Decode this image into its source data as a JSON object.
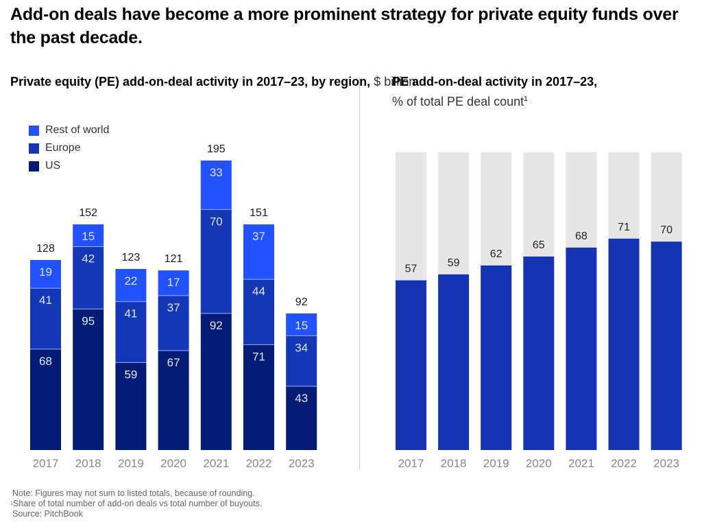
{
  "title": "Add-on deals have become a more prominent strategy for private equity funds over the past decade.",
  "colors": {
    "rest_of_world": "#2251ff",
    "europe": "#1437b8",
    "us": "#051c76",
    "share": "#1534b4",
    "share_bg": "#e6e6e6"
  },
  "chart_data": [
    {
      "type": "bar",
      "stacked": true,
      "title_bold": "Private equity (PE) add-on-deal activity in 2017–23, by region,",
      "title_light": "$ billion",
      "xlabel": "",
      "ylabel": "$ billion",
      "categories": [
        "2017",
        "2018",
        "2019",
        "2020",
        "2021",
        "2022",
        "2023"
      ],
      "series": [
        {
          "name": "US",
          "color_key": "us",
          "values": [
            68,
            95,
            59,
            67,
            92,
            71,
            43
          ]
        },
        {
          "name": "Europe",
          "color_key": "europe",
          "values": [
            41,
            42,
            41,
            37,
            70,
            44,
            34
          ]
        },
        {
          "name": "Rest of world",
          "color_key": "rest_of_world",
          "values": [
            19,
            15,
            22,
            17,
            33,
            37,
            15
          ]
        }
      ],
      "totals": [
        128,
        152,
        123,
        121,
        195,
        151,
        92
      ],
      "legend": [
        "Rest of world",
        "Europe",
        "US"
      ],
      "legend_position": "top-left",
      "ylim": [
        0,
        195
      ],
      "grid": false
    },
    {
      "type": "bar",
      "title_bold": "PE add-on-deal activity in 2017–23,",
      "title_light": "% of total PE deal count",
      "title_footnote": "1",
      "xlabel": "",
      "ylabel": "% of total PE deal count",
      "categories": [
        "2017",
        "2018",
        "2019",
        "2020",
        "2021",
        "2022",
        "2023"
      ],
      "values": [
        57,
        59,
        62,
        65,
        68,
        71,
        70
      ],
      "ylim": [
        0,
        100
      ],
      "grid": false
    }
  ],
  "notes": {
    "note": "Note: Figures may not sum to listed totals, because of rounding.",
    "footnote_mark": "1",
    "footnote": "Share of total number of add-on deals vs total number of buyouts.",
    "source": "Source: PitchBook"
  }
}
